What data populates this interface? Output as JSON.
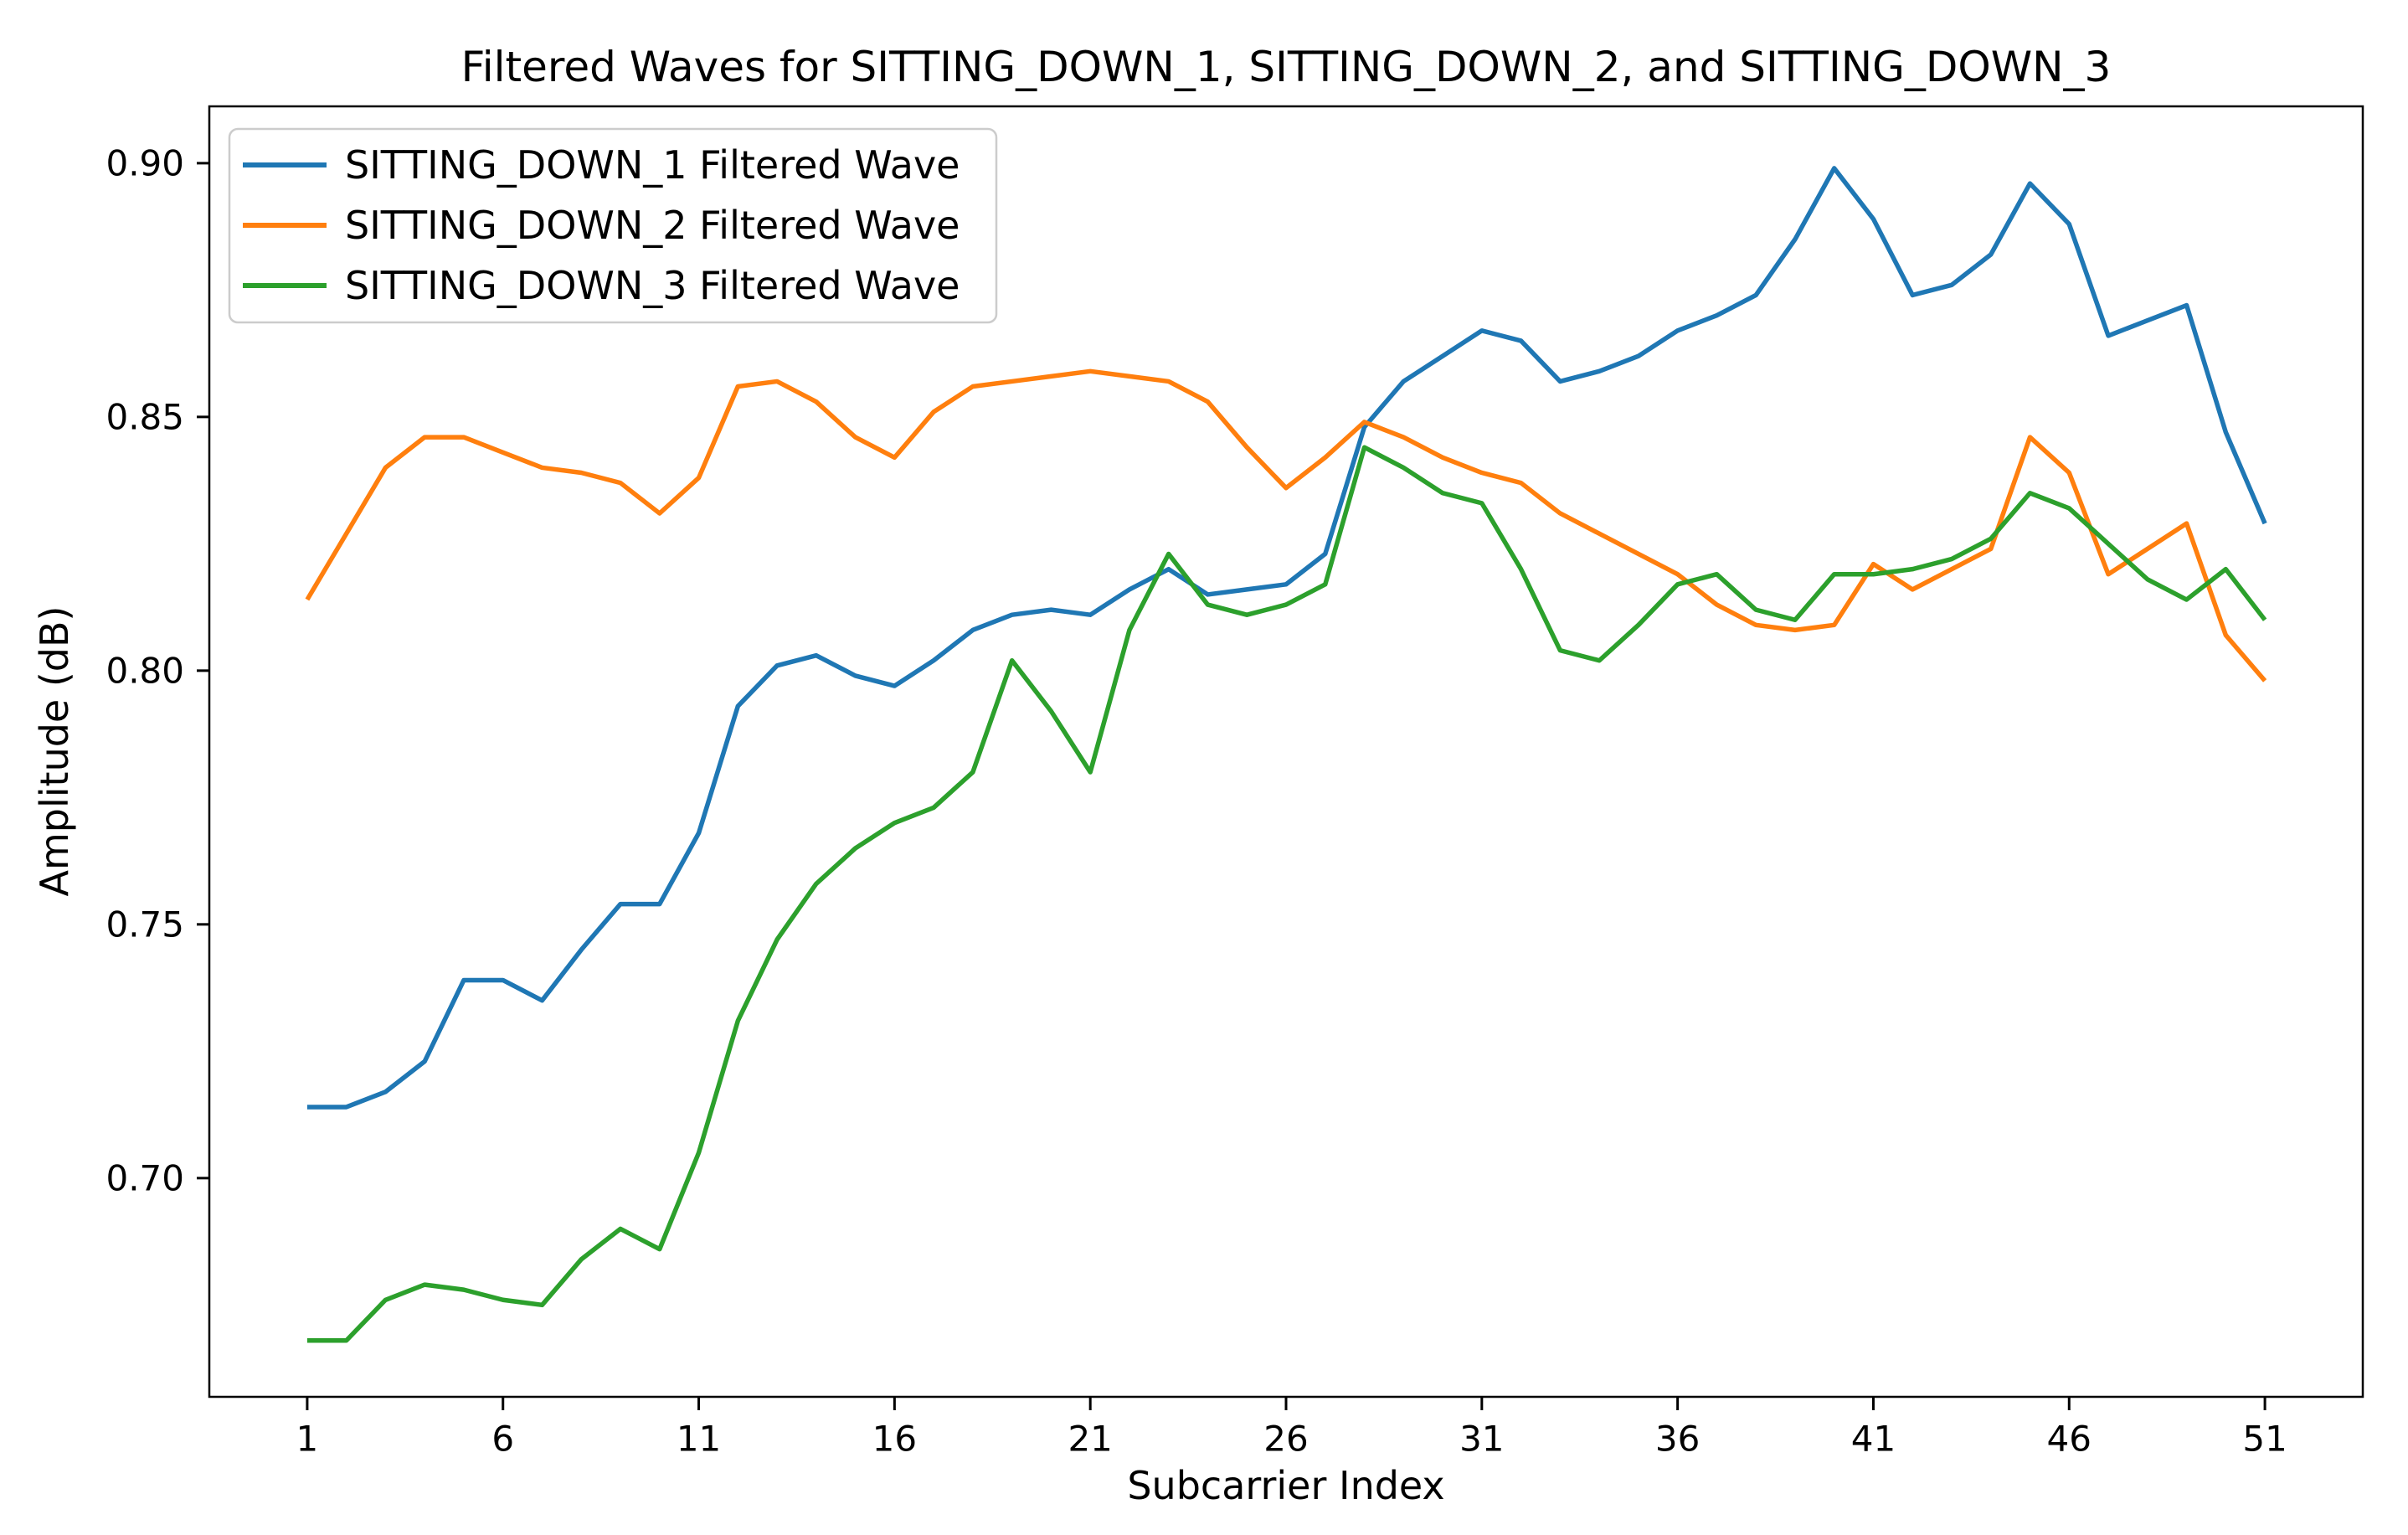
{
  "title": "Filtered Waves for SITTING_DOWN_1, SITTING_DOWN_2, and SITTING_DOWN_3",
  "chart_data": {
    "type": "line",
    "title": "Filtered Waves for SITTING_DOWN_1, SITTING_DOWN_2, and SITTING_DOWN_3",
    "xlabel": "Subcarrier Index",
    "ylabel": "Amplitude (dB)",
    "x": [
      1,
      2,
      3,
      4,
      5,
      6,
      7,
      8,
      9,
      10,
      11,
      12,
      13,
      14,
      15,
      16,
      17,
      18,
      19,
      20,
      21,
      22,
      23,
      24,
      25,
      26,
      27,
      28,
      29,
      30,
      31,
      32,
      33,
      34,
      35,
      36,
      37,
      38,
      39,
      40,
      41,
      42,
      43,
      44,
      45,
      46,
      47,
      48,
      49,
      50,
      51
    ],
    "x_ticks": [
      1,
      6,
      11,
      16,
      21,
      26,
      31,
      36,
      41,
      46,
      51
    ],
    "y_ticks": [
      0.7,
      0.75,
      0.8,
      0.85,
      0.9
    ],
    "y_tick_labels": [
      "0.70",
      "0.75",
      "0.80",
      "0.85",
      "0.90"
    ],
    "xlim": [
      -1.5,
      53.5
    ],
    "ylim": [
      0.6569,
      0.9112
    ],
    "grid": false,
    "legend_position": "upper left",
    "background_color": "#ffffff",
    "frame_color": "#000000",
    "series": [
      {
        "name": "SITTING_DOWN_1 Filtered Wave",
        "color": "#1f77b4",
        "values": [
          0.714,
          0.714,
          0.717,
          0.723,
          0.739,
          0.739,
          0.735,
          0.745,
          0.754,
          0.754,
          0.768,
          0.793,
          0.801,
          0.803,
          0.799,
          0.797,
          0.802,
          0.808,
          0.811,
          0.812,
          0.811,
          0.816,
          0.82,
          0.815,
          0.816,
          0.817,
          0.823,
          0.848,
          0.857,
          0.862,
          0.867,
          0.865,
          0.857,
          0.859,
          0.862,
          0.867,
          0.87,
          0.874,
          0.885,
          0.899,
          0.889,
          0.874,
          0.876,
          0.882,
          0.896,
          0.888,
          0.866,
          0.869,
          0.872,
          0.847,
          0.829
        ]
      },
      {
        "name": "SITTING_DOWN_2 Filtered Wave",
        "color": "#ff7f0e",
        "values": [
          0.814,
          0.827,
          0.84,
          0.846,
          0.846,
          0.843,
          0.84,
          0.839,
          0.837,
          0.831,
          0.838,
          0.856,
          0.857,
          0.853,
          0.846,
          0.842,
          0.851,
          0.856,
          0.857,
          0.858,
          0.859,
          0.858,
          0.857,
          0.853,
          0.844,
          0.836,
          0.842,
          0.849,
          0.846,
          0.842,
          0.839,
          0.837,
          0.831,
          0.827,
          0.823,
          0.819,
          0.813,
          0.809,
          0.808,
          0.809,
          0.821,
          0.816,
          0.82,
          0.824,
          0.846,
          0.839,
          0.819,
          0.824,
          0.829,
          0.807,
          0.798
        ]
      },
      {
        "name": "SITTING_DOWN_3 Filtered Wave",
        "color": "#2ca02c",
        "values": [
          0.668,
          0.668,
          0.676,
          0.679,
          0.678,
          0.676,
          0.675,
          0.684,
          0.69,
          0.686,
          0.705,
          0.731,
          0.747,
          0.758,
          0.765,
          0.77,
          0.773,
          0.78,
          0.802,
          0.792,
          0.78,
          0.808,
          0.823,
          0.813,
          0.811,
          0.813,
          0.817,
          0.844,
          0.84,
          0.835,
          0.833,
          0.82,
          0.804,
          0.802,
          0.809,
          0.817,
          0.819,
          0.812,
          0.81,
          0.819,
          0.819,
          0.82,
          0.822,
          0.826,
          0.835,
          0.832,
          0.825,
          0.818,
          0.814,
          0.82,
          0.81
        ]
      }
    ]
  }
}
